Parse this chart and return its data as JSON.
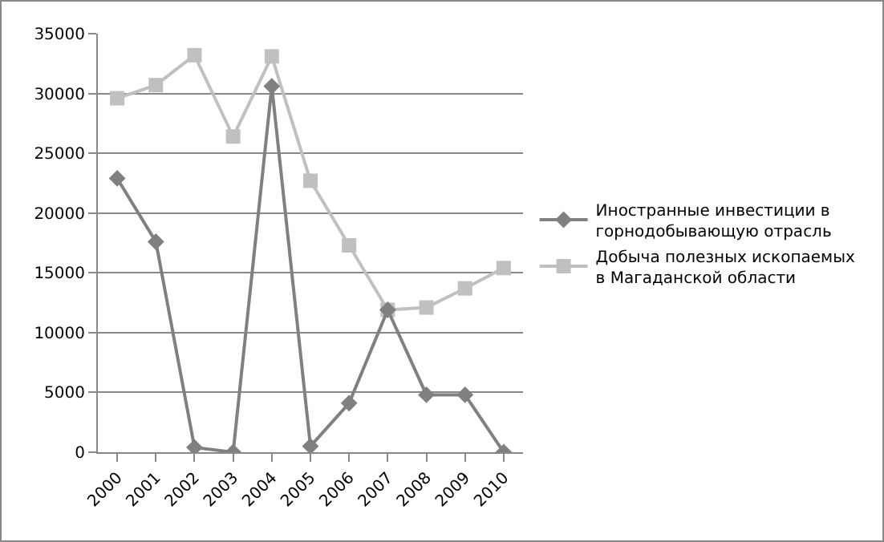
{
  "chart_data": {
    "type": "line",
    "categories": [
      "2000",
      "2001",
      "2002",
      "2003",
      "2004",
      "2005",
      "2006",
      "2007",
      "2008",
      "2009",
      "2010"
    ],
    "series": [
      {
        "name": "Иностранные инвестиции в горнодобывающую отрасль",
        "color": "#808080",
        "marker": "diamond",
        "values": [
          22900,
          17600,
          400,
          0,
          30600,
          500,
          4100,
          11900,
          4800,
          4800,
          0
        ]
      },
      {
        "name": "Добыча полезных ископаемых в Магаданской области",
        "color": "#c0c0c0",
        "marker": "square",
        "values": [
          29600,
          30700,
          33200,
          26400,
          33100,
          22700,
          17300,
          11900,
          12100,
          13700,
          15400
        ]
      }
    ],
    "ylim": [
      0,
      35000
    ],
    "yticks": [
      0,
      5000,
      10000,
      15000,
      20000,
      25000,
      30000,
      35000
    ],
    "grid": "y",
    "legend": "right"
  }
}
